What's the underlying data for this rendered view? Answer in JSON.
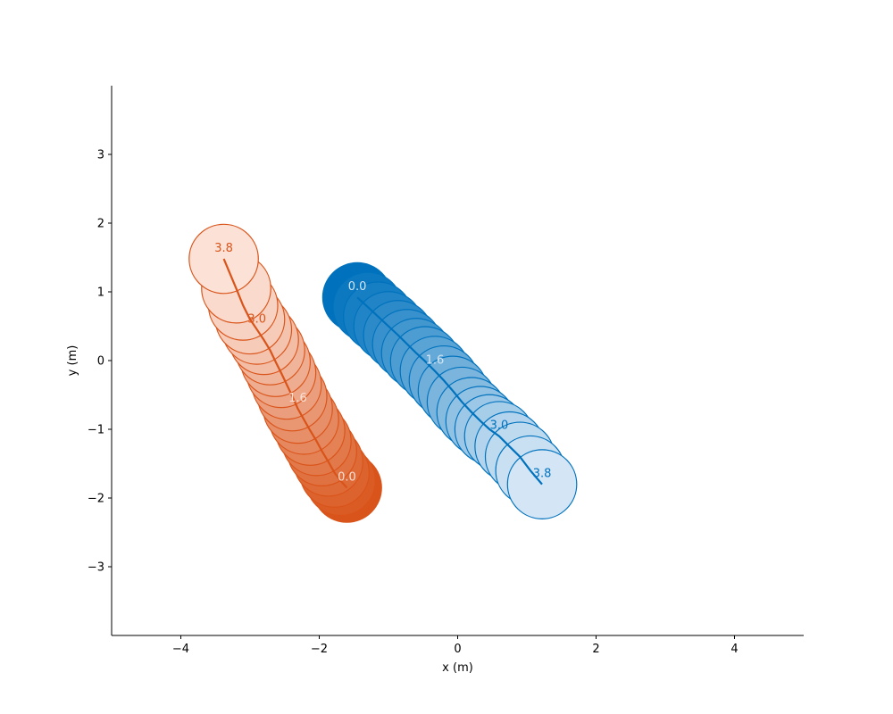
{
  "chart_data": {
    "type": "scatter",
    "title": "",
    "xlabel": "x (m)",
    "ylabel": "y (m)",
    "xlim": [
      -5,
      5
    ],
    "ylim": [
      -4,
      4
    ],
    "x_ticks": [
      -4,
      -2,
      0,
      2,
      4
    ],
    "y_ticks": [
      -3,
      -2,
      -1,
      0,
      1,
      2,
      3
    ],
    "x_tick_labels": [
      "−4",
      "−2",
      "0",
      "2",
      "4"
    ],
    "y_tick_labels": [
      "−3",
      "−2",
      "−1",
      "0",
      "1",
      "2",
      "3"
    ],
    "grid": false,
    "agent_radius": 0.5,
    "series": [
      {
        "color": "#d9541a",
        "face_start": "#d9541a",
        "face_end": "#fbe1d6",
        "points": [
          {
            "t": 0.0,
            "x": -1.6,
            "y": -1.85
          },
          {
            "t": 0.2,
            "x": -1.69,
            "y": -1.75
          },
          {
            "t": 0.4,
            "x": -1.78,
            "y": -1.63
          },
          {
            "t": 0.6,
            "x": -1.87,
            "y": -1.47
          },
          {
            "t": 0.8,
            "x": -1.96,
            "y": -1.32
          },
          {
            "t": 1.0,
            "x": -2.04,
            "y": -1.17
          },
          {
            "t": 1.2,
            "x": -2.13,
            "y": -1.02
          },
          {
            "t": 1.4,
            "x": -2.22,
            "y": -0.86
          },
          {
            "t": 1.6,
            "x": -2.31,
            "y": -0.7
          },
          {
            "t": 1.8,
            "x": -2.39,
            "y": -0.52
          },
          {
            "t": 2.0,
            "x": -2.47,
            "y": -0.35
          },
          {
            "t": 2.2,
            "x": -2.55,
            "y": -0.18
          },
          {
            "t": 2.4,
            "x": -2.63,
            "y": -0.02
          },
          {
            "t": 2.6,
            "x": -2.71,
            "y": 0.15
          },
          {
            "t": 2.8,
            "x": -2.8,
            "y": 0.3
          },
          {
            "t": 3.0,
            "x": -2.9,
            "y": 0.45
          },
          {
            "t": 3.2,
            "x": -3.0,
            "y": 0.6
          },
          {
            "t": 3.4,
            "x": -3.1,
            "y": 0.8
          },
          {
            "t": 3.6,
            "x": -3.2,
            "y": 1.05
          },
          {
            "t": 3.8,
            "x": -3.38,
            "y": 1.48
          }
        ]
      },
      {
        "color": "#0072bd",
        "face_start": "#0072bd",
        "face_end": "#d4e6f5",
        "points": [
          {
            "t": 0.0,
            "x": -1.45,
            "y": 0.92
          },
          {
            "t": 0.2,
            "x": -1.3,
            "y": 0.78
          },
          {
            "t": 0.4,
            "x": -1.15,
            "y": 0.64
          },
          {
            "t": 0.6,
            "x": -1.0,
            "y": 0.5
          },
          {
            "t": 0.8,
            "x": -0.86,
            "y": 0.37
          },
          {
            "t": 1.0,
            "x": -0.73,
            "y": 0.24
          },
          {
            "t": 1.2,
            "x": -0.6,
            "y": 0.11
          },
          {
            "t": 1.4,
            "x": -0.47,
            "y": -0.01
          },
          {
            "t": 1.6,
            "x": -0.33,
            "y": -0.15
          },
          {
            "t": 1.8,
            "x": -0.2,
            "y": -0.29
          },
          {
            "t": 2.0,
            "x": -0.07,
            "y": -0.44
          },
          {
            "t": 2.2,
            "x": 0.06,
            "y": -0.6
          },
          {
            "t": 2.4,
            "x": 0.2,
            "y": -0.75
          },
          {
            "t": 2.6,
            "x": 0.33,
            "y": -0.88
          },
          {
            "t": 2.8,
            "x": 0.46,
            "y": -1.0
          },
          {
            "t": 3.0,
            "x": 0.6,
            "y": -1.1
          },
          {
            "t": 3.2,
            "x": 0.75,
            "y": -1.25
          },
          {
            "t": 3.4,
            "x": 0.9,
            "y": -1.4
          },
          {
            "t": 3.6,
            "x": 1.05,
            "y": -1.6
          },
          {
            "t": 3.8,
            "x": 1.22,
            "y": -1.8
          }
        ]
      }
    ],
    "time_labels": [
      {
        "series": 0,
        "t": 0.0,
        "text": "0.0",
        "color": "#fbe1d6"
      },
      {
        "series": 0,
        "t": 1.6,
        "text": "1.6",
        "color": "#fbe1d6"
      },
      {
        "series": 0,
        "t": 3.0,
        "text": "3.0",
        "color": "#d9541a"
      },
      {
        "series": 0,
        "t": 3.8,
        "text": "3.8",
        "color": "#d9541a"
      },
      {
        "series": 1,
        "t": 0.0,
        "text": "0.0",
        "color": "#d4e6f5"
      },
      {
        "series": 1,
        "t": 1.6,
        "text": "1.6",
        "color": "#d4e6f5"
      },
      {
        "series": 1,
        "t": 3.0,
        "text": "3.0",
        "color": "#0072bd"
      },
      {
        "series": 1,
        "t": 3.8,
        "text": "3.8",
        "color": "#0072bd"
      }
    ]
  }
}
